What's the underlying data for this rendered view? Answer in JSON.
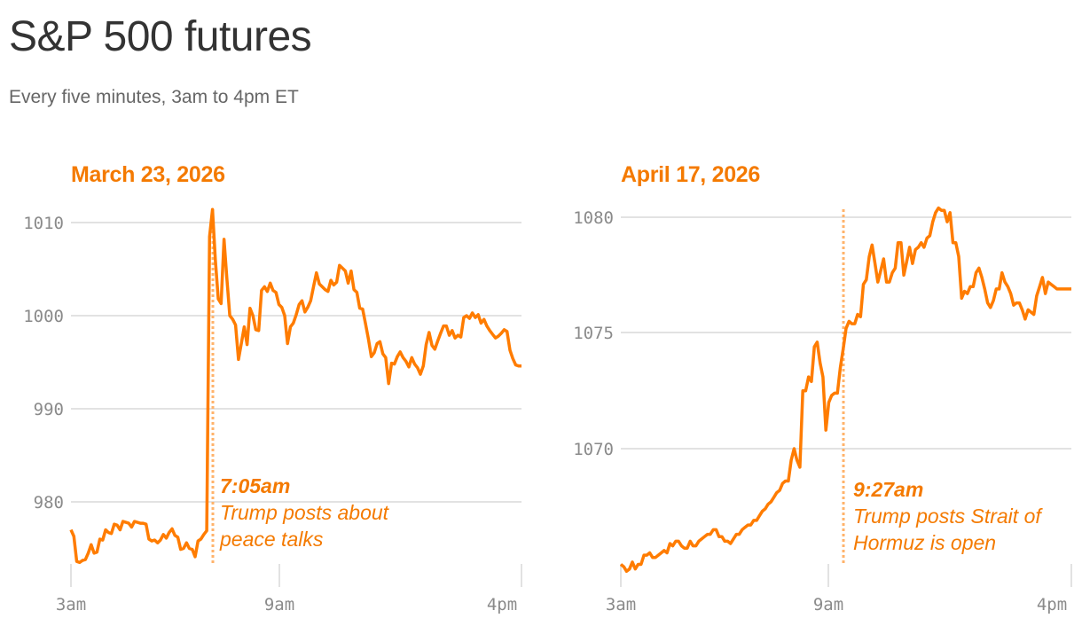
{
  "header": {
    "title": "S&P 500 futures",
    "subtitle": "Every five minutes, 3am to 4pm ET"
  },
  "colors": {
    "line": "#ff7c00",
    "annotation": "#f47a00",
    "event_line": "#ffb36b",
    "grid": "#e2e2e2",
    "tick_text": "#8a8a8a"
  },
  "chart_data": [
    {
      "type": "line",
      "title": "March 23, 2026",
      "xlabel": "",
      "ylabel": "",
      "x_ticks": [
        "3am",
        "9am",
        "4pm"
      ],
      "y_ticks": [
        980,
        990,
        1000,
        1010
      ],
      "ylim": [
        973,
        1011.5
      ],
      "grid": true,
      "annotation": {
        "time": "7:05am",
        "text_line1": "Trump posts about",
        "text_line2": "peace talks",
        "step": 49
      },
      "x_step_minutes": 5,
      "series": [
        {
          "name": "S&P 500 futures",
          "x_step": [
            0,
            1,
            2,
            3,
            4,
            5,
            6,
            7,
            8,
            9,
            10,
            11,
            12,
            13,
            14,
            15,
            16,
            17,
            18,
            19,
            20,
            21,
            22,
            23,
            24,
            25,
            26,
            27,
            28,
            29,
            30,
            31,
            32,
            33,
            34,
            35,
            36,
            37,
            38,
            39,
            40,
            41,
            42,
            43,
            44,
            45,
            46,
            47,
            48,
            49,
            50,
            51,
            52,
            53,
            54,
            55,
            56,
            57,
            58,
            59,
            60,
            61,
            62,
            63,
            64,
            65,
            66,
            67,
            68,
            69,
            70,
            71,
            72,
            73,
            74,
            75,
            76,
            77,
            78,
            79,
            80,
            81,
            82,
            83,
            84,
            85,
            86,
            87,
            88,
            89,
            90,
            91,
            92,
            93,
            94,
            95,
            96,
            97,
            98,
            99,
            100,
            101,
            102,
            103,
            104,
            105,
            106,
            107,
            108,
            109,
            110,
            111,
            112,
            113,
            114,
            115,
            116,
            117,
            118,
            119,
            120,
            121,
            122,
            123,
            124,
            125,
            126,
            127,
            128,
            129,
            130,
            131,
            132,
            133,
            134,
            135,
            136,
            137,
            138,
            139,
            140,
            141,
            142,
            143,
            144,
            145,
            146,
            147,
            148,
            149,
            150,
            151,
            152,
            153,
            154,
            155,
            156
          ],
          "values": [
            977.0,
            976.3,
            973.6,
            973.5,
            973.7,
            973.8,
            974.5,
            975.4,
            974.5,
            974.6,
            976.0,
            975.9,
            977.0,
            976.7,
            976.6,
            977.6,
            977.5,
            977.0,
            977.9,
            977.8,
            977.7,
            977.3,
            977.9,
            977.8,
            977.7,
            977.7,
            977.6,
            976.0,
            975.8,
            975.9,
            975.6,
            975.9,
            976.5,
            976.1,
            976.7,
            977.1,
            976.4,
            976.2,
            974.9,
            975.0,
            975.6,
            975.0,
            974.9,
            974.1,
            975.8,
            976.0,
            976.5,
            976.9,
            1008.5,
            1011.4,
            1006.0,
            1001.8,
            1001.3,
            1008.2,
            1004.0,
            1000.0,
            999.6,
            999.0,
            995.3,
            997.0,
            998.8,
            996.9,
            1000.8,
            1000.0,
            998.5,
            998.4,
            1002.7,
            1003.1,
            1002.6,
            1003.5,
            1002.7,
            1002.5,
            1001.2,
            1000.9,
            1000.0,
            997.0,
            998.8,
            999.2,
            1000.1,
            1001.2,
            1001.6,
            1000.4,
            1000.9,
            1001.6,
            1003.1,
            1004.6,
            1003.4,
            1003.1,
            1002.8,
            1002.6,
            1003.8,
            1003.3,
            1003.6,
            1005.4,
            1005.1,
            1004.8,
            1003.5,
            1004.8,
            1002.8,
            1002.5,
            1000.8,
            1000.7,
            999.1,
            997.5,
            995.6,
            996.0,
            997.0,
            997.2,
            995.9,
            995.5,
            992.7,
            994.9,
            994.8,
            995.6,
            996.1,
            995.5,
            995.1,
            994.5,
            995.5,
            994.8,
            994.4,
            993.7,
            994.6,
            996.9,
            998.2,
            996.8,
            996.4,
            997.3,
            998.1,
            998.9,
            998.9,
            997.9,
            998.4,
            997.6,
            997.9,
            997.7,
            999.8,
            1000.0,
            999.7,
            1000.3,
            999.8,
            1000.1,
            999.2,
            999.6,
            998.9,
            998.4,
            998.0,
            997.6,
            997.8,
            998.1,
            998.5,
            998.3,
            996.3,
            995.4,
            994.7,
            994.6,
            994.6
          ]
        }
      ]
    },
    {
      "type": "line",
      "title": "April 17, 2026",
      "xlabel": "",
      "ylabel": "",
      "x_ticks": [
        "3am",
        "9am",
        "4pm"
      ],
      "y_ticks": [
        1070,
        1075,
        1080
      ],
      "ylim": [
        1065,
        1080.4
      ],
      "grid": true,
      "annotation": {
        "time": "9:27am",
        "text_line1": "Trump posts Strait of",
        "text_line2": "Hormuz is open",
        "step": 77
      },
      "x_step_minutes": 5,
      "series": [
        {
          "name": "S&P 500 futures",
          "x_step": [
            0,
            1,
            2,
            3,
            4,
            5,
            6,
            7,
            8,
            9,
            10,
            11,
            12,
            13,
            14,
            15,
            16,
            17,
            18,
            19,
            20,
            21,
            22,
            23,
            24,
            25,
            26,
            27,
            28,
            29,
            30,
            31,
            32,
            33,
            34,
            35,
            36,
            37,
            38,
            39,
            40,
            41,
            42,
            43,
            44,
            45,
            46,
            47,
            48,
            49,
            50,
            51,
            52,
            53,
            54,
            55,
            56,
            57,
            58,
            59,
            60,
            61,
            62,
            63,
            64,
            65,
            66,
            67,
            68,
            69,
            70,
            71,
            72,
            73,
            74,
            75,
            76,
            77,
            78,
            79,
            80,
            81,
            82,
            83,
            84,
            85,
            86,
            87,
            88,
            89,
            90,
            91,
            92,
            93,
            94,
            95,
            96,
            97,
            98,
            99,
            100,
            101,
            102,
            103,
            104,
            105,
            106,
            107,
            108,
            109,
            110,
            111,
            112,
            113,
            114,
            115,
            116,
            117,
            118,
            119,
            120,
            121,
            122,
            123,
            124,
            125,
            126,
            127,
            128,
            129,
            130,
            131,
            132,
            133,
            134,
            135,
            136,
            137,
            138,
            139,
            140,
            141,
            142,
            143,
            144,
            145,
            146,
            147,
            148,
            149,
            150,
            151,
            152,
            153,
            154,
            155,
            156
          ],
          "values": [
            1065.0,
            1064.9,
            1064.7,
            1064.8,
            1065.1,
            1064.8,
            1065.0,
            1065.0,
            1065.4,
            1065.4,
            1065.5,
            1065.3,
            1065.3,
            1065.4,
            1065.5,
            1065.6,
            1065.5,
            1065.9,
            1065.8,
            1066.0,
            1066.0,
            1065.8,
            1065.7,
            1065.7,
            1066.0,
            1065.8,
            1065.8,
            1066.0,
            1066.1,
            1066.2,
            1066.3,
            1066.3,
            1066.5,
            1066.5,
            1066.2,
            1066.2,
            1066.0,
            1066.0,
            1065.9,
            1066.1,
            1066.3,
            1066.3,
            1066.5,
            1066.6,
            1066.7,
            1066.7,
            1066.9,
            1066.9,
            1067.1,
            1067.3,
            1067.4,
            1067.6,
            1067.7,
            1067.9,
            1068.1,
            1068.2,
            1068.5,
            1068.6,
            1068.6,
            1069.5,
            1070.0,
            1069.5,
            1069.2,
            1072.5,
            1072.5,
            1073.1,
            1072.9,
            1074.4,
            1074.6,
            1073.7,
            1073.1,
            1070.8,
            1072.0,
            1072.3,
            1072.4,
            1072.4,
            1073.5,
            1074.3,
            1075.2,
            1075.5,
            1075.4,
            1075.4,
            1075.8,
            1075.7,
            1077.1,
            1077.3,
            1078.3,
            1078.8,
            1078.0,
            1077.2,
            1077.7,
            1078.2,
            1077.2,
            1077.2,
            1077.6,
            1077.8,
            1078.9,
            1078.9,
            1077.5,
            1078.1,
            1078.7,
            1078.0,
            1078.6,
            1078.7,
            1078.9,
            1078.7,
            1079.1,
            1079.2,
            1079.8,
            1080.2,
            1080.4,
            1080.3,
            1080.3,
            1079.8,
            1080.2,
            1078.9,
            1078.9,
            1078.3,
            1076.5,
            1076.8,
            1076.7,
            1077.0,
            1077.0,
            1077.6,
            1077.8,
            1077.4,
            1076.9,
            1076.3,
            1076.1,
            1076.4,
            1076.9,
            1076.9,
            1077.6,
            1077.2,
            1077.0,
            1076.7,
            1076.2,
            1076.3,
            1076.3,
            1076.0,
            1075.6,
            1076.0,
            1075.9,
            1075.8,
            1076.6,
            1077.0,
            1077.4,
            1076.7,
            1077.2,
            1077.1,
            1077.0,
            1076.9,
            1076.9,
            1076.9,
            1076.9,
            1076.9,
            1076.9
          ]
        }
      ]
    }
  ],
  "panels": [
    {
      "title": "March 23, 2026",
      "ann_time": "7:05am",
      "ann_line1": "Trump posts about",
      "ann_line2": "peace talks",
      "x_ticks": [
        "3am",
        "9am",
        "4pm"
      ],
      "y_ticks": [
        "1010",
        "1000",
        "990",
        "980"
      ]
    },
    {
      "title": "April 17, 2026",
      "ann_time": "9:27am",
      "ann_line1": "Trump posts Strait of",
      "ann_line2": "Hormuz is open",
      "x_ticks": [
        "3am",
        "9am",
        "4pm"
      ],
      "y_ticks": [
        "1080",
        "1075",
        "1070"
      ]
    }
  ]
}
